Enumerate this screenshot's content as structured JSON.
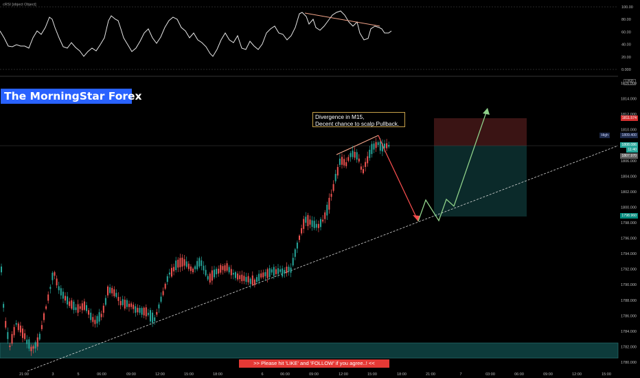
{
  "rsi": {
    "label": "cRSI [object Object]",
    "ticks": [
      "100.00",
      "80.00",
      "60.00",
      "40.00",
      "20.00",
      "0.000"
    ]
  },
  "price_axis": {
    "currency": "USD",
    "ticks": [
      "1816.000",
      "1814.000",
      "1812.000",
      "1810.000",
      "1808.000",
      "1806.000",
      "1804.000",
      "1802.000",
      "1800.000",
      "1798.000",
      "1796.000",
      "1794.000",
      "1792.000",
      "1790.000",
      "1788.000",
      "1786.000",
      "1784.000",
      "1782.000",
      "1780.000"
    ],
    "tags": {
      "stop_loss": "1811.574",
      "high_label": "High",
      "high_value": "1809.400",
      "current": "1808.086",
      "countdown": "11:40",
      "entry": "1807.970",
      "take_profit": "1798.960"
    }
  },
  "time_axis": {
    "ticks": [
      "21:00",
      "3",
      "5",
      "06:00",
      "09:00",
      "12:00",
      "15:00",
      "18:00",
      "6",
      "06:00",
      "09:00",
      "12:00",
      "15:00",
      "18:00",
      "21:00",
      "7",
      "03:00",
      "06:00",
      "09:00",
      "12:00",
      "15:00"
    ]
  },
  "overlay": {
    "title": "The MorningStar Forex",
    "note_line1": "Divergence in M15,",
    "note_line2": "Decent chance to scalp Pullback.",
    "cta": ">>     Please hit 'LIKE' and 'FOLLOW' if you agree..!     <<"
  },
  "colors": {
    "background": "#000000",
    "bull_candle": "#26a69a",
    "bear_candle": "#ef5350",
    "title_bg": "#2962ff",
    "cta_bg": "#e53935",
    "support_zone": "#0d3b3b",
    "stop_zone": "#3a1414",
    "target_zone": "#0b2a2a",
    "divergence_line": "#f4a58a"
  }
}
